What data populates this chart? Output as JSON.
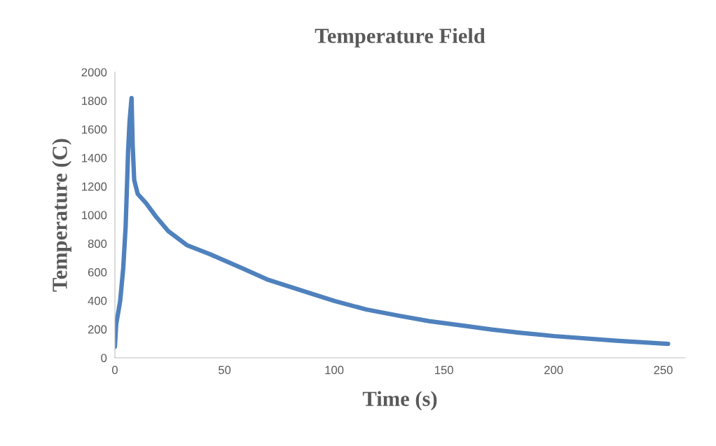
{
  "chart_data": {
    "type": "line",
    "title": "Temperature Field",
    "xlabel": "Time (s)",
    "ylabel": "Temperature (C)",
    "xlim": [
      0,
      260
    ],
    "xticks": [
      0,
      50,
      100,
      150,
      200,
      250
    ],
    "ylim": [
      0,
      2000
    ],
    "yticks": [
      0,
      200,
      400,
      600,
      800,
      1000,
      1200,
      1400,
      1600,
      1800,
      2000
    ],
    "grid": false,
    "series": [
      {
        "color": "#4f81bd",
        "x": [
          0,
          0.6,
          2.4,
          3.8,
          4.9,
          5.6,
          6,
          6.7,
          7.6,
          8.1,
          8.8,
          10.4,
          14.2,
          18.9,
          24.3,
          32.8,
          43.4,
          57.7,
          70,
          86.2,
          100,
          114.6,
          130,
          143.2,
          160,
          171.7,
          185,
          200.2,
          228.6,
          252.2
        ],
        "values": [
          78,
          235,
          397,
          627,
          920,
          1245,
          1441,
          1657,
          1818,
          1490,
          1245,
          1147,
          1083,
          985,
          887,
          789,
          725,
          629,
          545,
          466,
          398,
          338,
          293,
          257,
          222,
          198,
          175,
          152,
          120,
          98
        ]
      }
    ]
  }
}
